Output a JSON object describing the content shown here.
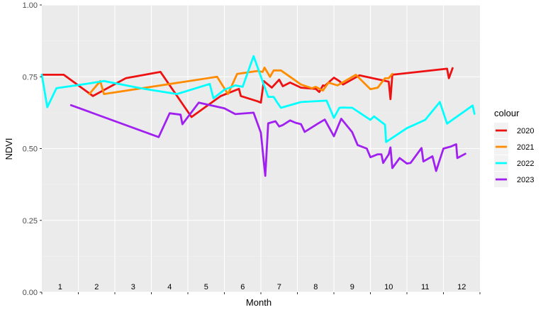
{
  "chart_data": {
    "type": "line",
    "xlabel": "Month",
    "ylabel": "NDVI",
    "ylim": [
      0,
      1
    ],
    "xlim": [
      0.5,
      12.5
    ],
    "y_ticks": [
      "0.00",
      "0.25",
      "0.50",
      "0.75",
      "1.00"
    ],
    "y_tick_values": [
      0,
      0.25,
      0.5,
      0.75,
      1.0
    ],
    "month_labels": [
      "1",
      "2",
      "3",
      "4",
      "5",
      "6",
      "7",
      "8",
      "9",
      "10",
      "11",
      "12"
    ],
    "grid": true,
    "legend_position": "right",
    "legend_title": "colour",
    "series": [
      {
        "name": "2020",
        "color": "#ee1111",
        "points": [
          [
            0.5,
            0.757
          ],
          [
            1.1,
            0.757
          ],
          [
            1.9,
            0.683
          ],
          [
            2.8,
            0.745
          ],
          [
            3.75,
            0.767
          ],
          [
            4.6,
            0.61
          ],
          [
            5.4,
            0.683
          ],
          [
            5.9,
            0.708
          ],
          [
            5.95,
            0.683
          ],
          [
            6.4,
            0.665
          ],
          [
            6.5,
            0.66
          ],
          [
            6.58,
            0.735
          ],
          [
            6.8,
            0.712
          ],
          [
            7.0,
            0.74
          ],
          [
            7.1,
            0.717
          ],
          [
            7.3,
            0.73
          ],
          [
            7.6,
            0.712
          ],
          [
            8.0,
            0.708
          ],
          [
            8.1,
            0.697
          ],
          [
            8.2,
            0.72
          ],
          [
            8.25,
            0.718
          ],
          [
            8.5,
            0.747
          ],
          [
            8.65,
            0.735
          ],
          [
            8.75,
            0.723
          ],
          [
            9.2,
            0.755
          ],
          [
            10.0,
            0.733
          ],
          [
            10.05,
            0.672
          ],
          [
            10.1,
            0.757
          ],
          [
            11.6,
            0.778
          ],
          [
            11.65,
            0.745
          ],
          [
            11.75,
            0.78
          ]
        ]
      },
      {
        "name": "2021",
        "color": "#ff8c00",
        "points": [
          [
            1.8,
            0.69
          ],
          [
            2.1,
            0.735
          ],
          [
            2.2,
            0.69
          ],
          [
            5.3,
            0.75
          ],
          [
            5.6,
            0.69
          ],
          [
            5.85,
            0.76
          ],
          [
            6.4,
            0.77
          ],
          [
            6.55,
            0.767
          ],
          [
            6.6,
            0.782
          ],
          [
            6.75,
            0.75
          ],
          [
            6.85,
            0.772
          ],
          [
            7.05,
            0.772
          ],
          [
            7.3,
            0.75
          ],
          [
            7.6,
            0.723
          ],
          [
            7.9,
            0.71
          ],
          [
            8.0,
            0.715
          ],
          [
            8.2,
            0.702
          ],
          [
            8.35,
            0.73
          ],
          [
            8.6,
            0.72
          ],
          [
            9.1,
            0.757
          ],
          [
            9.5,
            0.707
          ],
          [
            9.7,
            0.712
          ],
          [
            9.9,
            0.745
          ],
          [
            10.0,
            0.745
          ],
          [
            10.1,
            0.76
          ]
        ]
      },
      {
        "name": "2022",
        "color": "#00ffff",
        "points": [
          [
            0.5,
            0.757
          ],
          [
            0.65,
            0.644
          ],
          [
            0.9,
            0.71
          ],
          [
            1.7,
            0.725
          ],
          [
            2.2,
            0.735
          ],
          [
            3.2,
            0.71
          ],
          [
            4.2,
            0.69
          ],
          [
            5.1,
            0.725
          ],
          [
            5.2,
            0.675
          ],
          [
            5.5,
            0.705
          ],
          [
            5.8,
            0.72
          ],
          [
            6.0,
            0.715
          ],
          [
            6.3,
            0.822
          ],
          [
            6.7,
            0.68
          ],
          [
            6.85,
            0.68
          ],
          [
            6.95,
            0.66
          ],
          [
            7.05,
            0.642
          ],
          [
            7.6,
            0.662
          ],
          [
            8.3,
            0.667
          ],
          [
            8.5,
            0.607
          ],
          [
            8.65,
            0.642
          ],
          [
            8.75,
            0.643
          ],
          [
            9.0,
            0.642
          ],
          [
            9.5,
            0.6
          ],
          [
            9.6,
            0.612
          ],
          [
            9.9,
            0.583
          ],
          [
            9.93,
            0.523
          ],
          [
            10.5,
            0.571
          ],
          [
            11.0,
            0.6
          ],
          [
            11.4,
            0.662
          ],
          [
            11.6,
            0.587
          ],
          [
            12.3,
            0.65
          ],
          [
            12.35,
            0.621
          ]
        ]
      },
      {
        "name": "2023",
        "color": "#a020f0",
        "points": [
          [
            1.3,
            0.651
          ],
          [
            3.7,
            0.54
          ],
          [
            4.0,
            0.623
          ],
          [
            4.3,
            0.618
          ],
          [
            4.35,
            0.585
          ],
          [
            4.8,
            0.66
          ],
          [
            5.5,
            0.64
          ],
          [
            5.8,
            0.62
          ],
          [
            6.3,
            0.625
          ],
          [
            6.5,
            0.555
          ],
          [
            6.6,
            0.43
          ],
          [
            6.62,
            0.405
          ],
          [
            6.7,
            0.588
          ],
          [
            6.9,
            0.595
          ],
          [
            7.0,
            0.577
          ],
          [
            7.1,
            0.582
          ],
          [
            7.3,
            0.598
          ],
          [
            7.45,
            0.59
          ],
          [
            7.6,
            0.585
          ],
          [
            7.7,
            0.558
          ],
          [
            8.05,
            0.586
          ],
          [
            8.25,
            0.601
          ],
          [
            8.5,
            0.543
          ],
          [
            8.7,
            0.604
          ],
          [
            9.0,
            0.557
          ],
          [
            9.15,
            0.512
          ],
          [
            9.4,
            0.5
          ],
          [
            9.5,
            0.47
          ],
          [
            9.7,
            0.48
          ],
          [
            9.8,
            0.48
          ],
          [
            9.85,
            0.45
          ],
          [
            10.0,
            0.48
          ],
          [
            10.05,
            0.504
          ],
          [
            10.1,
            0.432
          ],
          [
            10.3,
            0.467
          ],
          [
            10.5,
            0.448
          ],
          [
            10.6,
            0.45
          ],
          [
            10.9,
            0.502
          ],
          [
            10.95,
            0.455
          ],
          [
            11.2,
            0.473
          ],
          [
            11.3,
            0.422
          ],
          [
            11.5,
            0.5
          ],
          [
            11.7,
            0.507
          ],
          [
            11.85,
            0.515
          ],
          [
            11.88,
            0.467
          ],
          [
            12.1,
            0.482
          ]
        ]
      }
    ]
  }
}
